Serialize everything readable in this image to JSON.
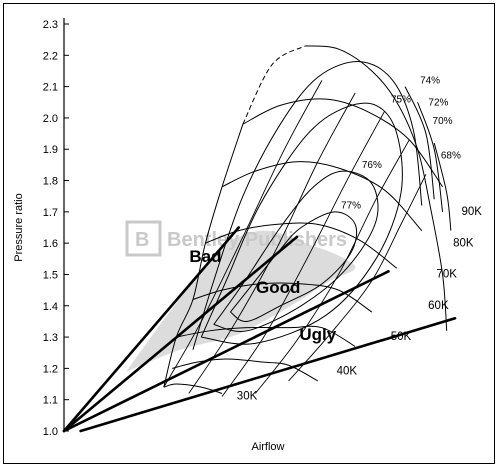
{
  "chart_data": {
    "type": "compressor_map",
    "ylabel": "Pressure ratio",
    "xlabel": "Airflow",
    "ylim": [
      1.0,
      2.3
    ],
    "y_ticks": [
      "1.0",
      "1.1",
      "1.2",
      "1.3",
      "1.4",
      "1.5",
      "1.6",
      "1.7",
      "1.8",
      "1.9",
      "2.0",
      "2.1",
      "2.2",
      "2.3"
    ],
    "speed_lines": [
      {
        "label": "30K",
        "points": [
          [
            0.24,
            1.14
          ],
          [
            0.27,
            1.15
          ],
          [
            0.33,
            1.14
          ],
          [
            0.38,
            1.12
          ]
        ]
      },
      {
        "label": "40K",
        "points": [
          [
            0.26,
            1.2
          ],
          [
            0.32,
            1.22
          ],
          [
            0.39,
            1.23
          ],
          [
            0.48,
            1.22
          ],
          [
            0.54,
            1.21
          ],
          [
            0.61,
            1.16
          ]
        ]
      },
      {
        "label": "50K",
        "points": [
          [
            0.27,
            1.3
          ],
          [
            0.35,
            1.32
          ],
          [
            0.44,
            1.33
          ],
          [
            0.54,
            1.33
          ],
          [
            0.62,
            1.33
          ],
          [
            0.7,
            1.27
          ]
        ]
      },
      {
        "label": "60K",
        "points": [
          [
            0.31,
            1.42
          ],
          [
            0.38,
            1.45
          ],
          [
            0.47,
            1.47
          ],
          [
            0.57,
            1.47
          ],
          [
            0.66,
            1.45
          ],
          [
            0.74,
            1.38
          ]
        ]
      },
      {
        "label": "70K",
        "points": [
          [
            0.34,
            1.6
          ],
          [
            0.42,
            1.64
          ],
          [
            0.51,
            1.66
          ],
          [
            0.61,
            1.66
          ],
          [
            0.71,
            1.61
          ],
          [
            0.8,
            1.52
          ]
        ]
      },
      {
        "label": "80K",
        "points": [
          [
            0.38,
            1.78
          ],
          [
            0.46,
            1.83
          ],
          [
            0.56,
            1.86
          ],
          [
            0.66,
            1.84
          ],
          [
            0.77,
            1.77
          ],
          [
            0.86,
            1.64
          ]
        ]
      },
      {
        "label": "90K",
        "points": [
          [
            0.43,
            1.98
          ],
          [
            0.52,
            2.04
          ],
          [
            0.63,
            2.06
          ],
          [
            0.73,
            2.02
          ],
          [
            0.83,
            1.93
          ],
          [
            0.91,
            1.78
          ]
        ]
      }
    ],
    "surge_line": {
      "points": [
        [
          0.24,
          1.14
        ],
        [
          0.27,
          1.3
        ],
        [
          0.31,
          1.42
        ],
        [
          0.34,
          1.6
        ],
        [
          0.38,
          1.78
        ],
        [
          0.43,
          1.98
        ],
        [
          0.5,
          2.17
        ],
        [
          0.58,
          2.23
        ]
      ]
    },
    "efficiency_islands": [
      {
        "label": "77%",
        "value": 77,
        "points": [
          [
            0.4,
            1.38
          ],
          [
            0.46,
            1.48
          ],
          [
            0.52,
            1.58
          ],
          [
            0.57,
            1.65
          ],
          [
            0.65,
            1.7
          ],
          [
            0.7,
            1.66
          ],
          [
            0.69,
            1.57
          ],
          [
            0.62,
            1.47
          ],
          [
            0.52,
            1.4
          ],
          [
            0.44,
            1.35
          ],
          [
            0.4,
            1.38
          ]
        ]
      },
      {
        "label": "76%",
        "value": 76,
        "points": [
          [
            0.36,
            1.34
          ],
          [
            0.43,
            1.47
          ],
          [
            0.52,
            1.65
          ],
          [
            0.6,
            1.78
          ],
          [
            0.67,
            1.83
          ],
          [
            0.74,
            1.79
          ],
          [
            0.75,
            1.67
          ],
          [
            0.68,
            1.52
          ],
          [
            0.57,
            1.4
          ],
          [
            0.44,
            1.32
          ],
          [
            0.36,
            1.34
          ]
        ]
      },
      {
        "label": "75%",
        "value": 75,
        "points": [
          [
            0.33,
            1.3
          ],
          [
            0.39,
            1.48
          ],
          [
            0.47,
            1.72
          ],
          [
            0.58,
            1.94
          ],
          [
            0.67,
            2.03
          ],
          [
            0.75,
            2.04
          ],
          [
            0.8,
            1.95
          ],
          [
            0.81,
            1.76
          ],
          [
            0.75,
            1.55
          ],
          [
            0.63,
            1.37
          ],
          [
            0.46,
            1.28
          ],
          [
            0.33,
            1.3
          ]
        ]
      },
      {
        "label": "74%",
        "value": 74,
        "points": [
          [
            0.31,
            1.26
          ],
          [
            0.36,
            1.48
          ],
          [
            0.43,
            1.75
          ],
          [
            0.52,
            1.98
          ],
          [
            0.61,
            2.13
          ],
          [
            0.71,
            2.18
          ],
          [
            0.79,
            2.12
          ],
          [
            0.84,
            1.96
          ],
          [
            0.86,
            1.72
          ]
        ]
      },
      {
        "label": "72%",
        "value": 72,
        "points": [
          [
            0.82,
            2.1
          ],
          [
            0.87,
            1.95
          ],
          [
            0.89,
            1.74
          ]
        ]
      },
      {
        "label": "70%",
        "value": 70,
        "points": [
          [
            0.85,
            2.05
          ],
          [
            0.89,
            1.9
          ],
          [
            0.91,
            1.7
          ]
        ]
      },
      {
        "label": "68%",
        "value": 68,
        "points": [
          [
            0.89,
            1.92
          ],
          [
            0.92,
            1.76
          ],
          [
            0.93,
            1.64
          ]
        ]
      }
    ],
    "regions": [
      {
        "label": "Bad",
        "description": "steep line from origin"
      },
      {
        "label": "Good",
        "description": "shaded operating zone"
      },
      {
        "label": "Ugly",
        "description": "shallow line from origin"
      }
    ],
    "grid": false,
    "legend": "none"
  },
  "watermark": "Bentley Publishers"
}
